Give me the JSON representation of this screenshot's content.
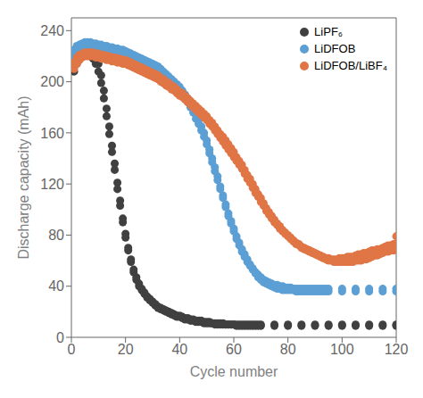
{
  "chart_data": {
    "type": "scatter",
    "xlabel": "Cycle number",
    "ylabel": "Discharge capacity (mAh)",
    "xlim": [
      0,
      120
    ],
    "ylim": [
      0,
      250
    ],
    "xticks": [
      0,
      20,
      40,
      60,
      80,
      100,
      120
    ],
    "yticks": [
      0,
      40,
      80,
      120,
      160,
      200,
      240
    ],
    "grid": false,
    "legend": "upper right",
    "series": [
      {
        "name": "LiPF₆",
        "color": "#404040",
        "x": [
          1,
          2,
          3,
          4,
          5,
          6,
          7,
          8,
          9,
          10,
          11,
          12,
          13,
          14,
          15,
          16,
          17,
          18,
          19,
          20,
          21,
          22,
          23,
          24,
          25,
          26,
          27,
          28,
          29,
          30,
          31,
          32,
          33,
          34,
          35,
          36,
          37,
          38,
          39,
          40,
          41,
          42,
          43,
          44,
          45,
          46,
          47,
          48,
          49,
          50,
          51,
          52,
          53,
          54,
          55,
          56,
          57,
          58,
          59,
          60,
          61,
          62,
          63,
          64,
          65,
          66,
          67,
          68,
          69,
          70,
          75,
          80,
          85,
          90,
          95,
          100,
          105,
          110,
          115,
          120
        ],
        "values": [
          220,
          224,
          226,
          227,
          228,
          227,
          226,
          224,
          220,
          214,
          205,
          193,
          179,
          165,
          150,
          136,
          121,
          107,
          93,
          81,
          70,
          61,
          53,
          47,
          42,
          38,
          35,
          32,
          30,
          28,
          26,
          24,
          23,
          22,
          21,
          20,
          19,
          18,
          17,
          17,
          16,
          15,
          15,
          14,
          14,
          13,
          13,
          13,
          12,
          12,
          12,
          11,
          11,
          11,
          11,
          11,
          10,
          10,
          10,
          10,
          10,
          10,
          10,
          10,
          10,
          10,
          10,
          10,
          10,
          10,
          10,
          10,
          10,
          10,
          10,
          10,
          10,
          10,
          10,
          10
        ]
      },
      {
        "name": "LiPF₆",
        "color": "#404040",
        "x": [
          1,
          2,
          3,
          4,
          5,
          6,
          7,
          8,
          9,
          10,
          11,
          12,
          13,
          14,
          15,
          16,
          17,
          18,
          19,
          20,
          21,
          22,
          23,
          24,
          25,
          26,
          27,
          28,
          29,
          30,
          31,
          32,
          33,
          34,
          35,
          36,
          37,
          38,
          39,
          40,
          41,
          42,
          43,
          44,
          45,
          46,
          47,
          48,
          49,
          50,
          51,
          52,
          53,
          54,
          55,
          56,
          57,
          58,
          59,
          60,
          61,
          62,
          63,
          64,
          65,
          66,
          67,
          68,
          69,
          70,
          75,
          80,
          85,
          90,
          95,
          100,
          105,
          110,
          115,
          120
        ],
        "values": [
          208,
          214,
          218,
          220,
          221,
          221,
          220,
          218,
          214,
          208,
          199,
          187,
          173,
          159,
          145,
          131,
          116,
          103,
          90,
          78,
          68,
          59,
          51,
          45,
          40,
          37,
          34,
          31,
          29,
          27,
          25,
          23,
          22,
          21,
          20,
          19,
          18,
          17,
          16,
          16,
          15,
          14,
          14,
          13,
          13,
          12,
          12,
          12,
          11,
          11,
          11,
          11,
          10,
          10,
          10,
          10,
          10,
          10,
          10,
          10,
          9,
          9,
          9,
          9,
          9,
          9,
          9,
          9,
          9,
          9,
          9,
          9,
          9,
          9,
          9,
          9,
          9,
          9,
          9,
          9
        ]
      },
      {
        "name": "LiDFOB",
        "color": "#5b9fd4",
        "x": [
          1,
          2,
          3,
          4,
          5,
          6,
          7,
          8,
          9,
          10,
          11,
          12,
          13,
          14,
          15,
          16,
          17,
          18,
          19,
          20,
          21,
          22,
          23,
          24,
          25,
          26,
          27,
          28,
          29,
          30,
          31,
          32,
          33,
          34,
          35,
          36,
          37,
          38,
          39,
          40,
          41,
          42,
          43,
          44,
          45,
          46,
          47,
          48,
          49,
          50,
          51,
          52,
          53,
          54,
          55,
          56,
          57,
          58,
          59,
          60,
          61,
          62,
          63,
          64,
          65,
          66,
          67,
          68,
          69,
          70,
          71,
          72,
          73,
          74,
          75,
          76,
          77,
          78,
          79,
          80,
          81,
          82,
          83,
          84,
          85,
          86,
          87,
          88,
          89,
          90,
          91,
          92,
          93,
          94,
          95,
          100,
          105,
          110,
          115,
          120
        ],
        "values": [
          225,
          228,
          229,
          230,
          231,
          231,
          231,
          230,
          230,
          229,
          229,
          228,
          228,
          227,
          227,
          226,
          226,
          225,
          225,
          224,
          223,
          222,
          221,
          220,
          219,
          218,
          217,
          216,
          215,
          214,
          213,
          212,
          210,
          208,
          206,
          204,
          202,
          200,
          198,
          196,
          193,
          190,
          187,
          183,
          179,
          174,
          170,
          165,
          160,
          154,
          147,
          140,
          133,
          126,
          118,
          111,
          104,
          97,
          91,
          85,
          79,
          74,
          69,
          65,
          61,
          57,
          54,
          51,
          49,
          47,
          45,
          44,
          43,
          42,
          41,
          41,
          40,
          40,
          39,
          39,
          39,
          38,
          38,
          38,
          38,
          38,
          38,
          38,
          38,
          38,
          38,
          38,
          38,
          38,
          38,
          38,
          38,
          38,
          38,
          38
        ]
      },
      {
        "name": "LiDFOB",
        "color": "#5b9fd4",
        "x": [
          1,
          2,
          3,
          4,
          5,
          6,
          7,
          8,
          9,
          10,
          11,
          12,
          13,
          14,
          15,
          16,
          17,
          18,
          19,
          20,
          21,
          22,
          23,
          24,
          25,
          26,
          27,
          28,
          29,
          30,
          31,
          32,
          33,
          34,
          35,
          36,
          37,
          38,
          39,
          40,
          41,
          42,
          43,
          44,
          45,
          46,
          47,
          48,
          49,
          50,
          51,
          52,
          53,
          54,
          55,
          56,
          57,
          58,
          59,
          60,
          61,
          62,
          63,
          64,
          65,
          66,
          67,
          68,
          69,
          70,
          71,
          72,
          73,
          74,
          75,
          76,
          77,
          78,
          79,
          80,
          81,
          82,
          83,
          84,
          85,
          86,
          87,
          88,
          89,
          90,
          91,
          92,
          93,
          94,
          95,
          100,
          105,
          110,
          115,
          120
        ],
        "values": [
          220,
          224,
          226,
          227,
          228,
          228,
          228,
          227,
          227,
          226,
          226,
          225,
          225,
          224,
          224,
          223,
          223,
          222,
          222,
          221,
          220,
          219,
          218,
          217,
          216,
          215,
          214,
          213,
          212,
          211,
          210,
          209,
          207,
          205,
          203,
          201,
          199,
          197,
          195,
          193,
          190,
          187,
          184,
          180,
          176,
          171,
          167,
          162,
          157,
          151,
          144,
          137,
          130,
          123,
          116,
          109,
          102,
          95,
          89,
          83,
          77,
          72,
          67,
          63,
          59,
          56,
          53,
          50,
          47,
          45,
          43,
          42,
          41,
          40,
          39,
          38,
          38,
          37,
          37,
          37,
          37,
          37,
          36,
          36,
          36,
          36,
          36,
          36,
          36,
          36,
          36,
          36,
          36,
          36,
          36,
          36,
          36,
          36,
          36,
          36
        ]
      },
      {
        "name": "LiDFOB/LiBF₄",
        "color": "#e07545",
        "x": [
          1,
          2,
          3,
          4,
          5,
          6,
          7,
          8,
          9,
          10,
          11,
          12,
          13,
          14,
          15,
          16,
          17,
          18,
          19,
          20,
          21,
          22,
          23,
          24,
          25,
          26,
          27,
          28,
          29,
          30,
          31,
          32,
          33,
          34,
          35,
          36,
          37,
          38,
          39,
          40,
          41,
          42,
          43,
          44,
          45,
          46,
          47,
          48,
          49,
          50,
          51,
          52,
          53,
          54,
          55,
          56,
          57,
          58,
          59,
          60,
          61,
          62,
          63,
          64,
          65,
          66,
          67,
          68,
          69,
          70,
          71,
          72,
          73,
          74,
          75,
          76,
          77,
          78,
          79,
          80,
          81,
          82,
          83,
          84,
          85,
          86,
          87,
          88,
          89,
          90,
          91,
          92,
          93,
          94,
          95,
          96,
          97,
          98,
          99,
          100,
          101,
          102,
          103,
          104,
          105,
          106,
          107,
          108,
          109,
          110,
          111,
          112,
          113,
          114,
          115,
          116,
          117,
          118,
          119,
          120
        ],
        "values": [
          215,
          219,
          221,
          222,
          223,
          223,
          223,
          223,
          222,
          222,
          221,
          221,
          220,
          220,
          219,
          219,
          218,
          218,
          217,
          217,
          216,
          215,
          214,
          213,
          212,
          211,
          210,
          209,
          208,
          207,
          206,
          205,
          203,
          202,
          200,
          199,
          197,
          196,
          194,
          192,
          191,
          189,
          187,
          185,
          183,
          181,
          179,
          177,
          175,
          173,
          170,
          168,
          165,
          162,
          159,
          157,
          154,
          151,
          148,
          145,
          141,
          138,
          135,
          131,
          127,
          124,
          120,
          116,
          112,
          109,
          105,
          101,
          98,
          95,
          92,
          89,
          87,
          84,
          82,
          80,
          78,
          76,
          74,
          73,
          71,
          70,
          69,
          68,
          67,
          66,
          65,
          64,
          63,
          62,
          62,
          61,
          61,
          61,
          62,
          62,
          62,
          63,
          63,
          63,
          64,
          65,
          65,
          66,
          66,
          67,
          68,
          68,
          69,
          69,
          70,
          71,
          72,
          72,
          73,
          73
        ]
      },
      {
        "name": "LiDFOB/LiBF₄",
        "color": "#e07545",
        "x": [
          1,
          2,
          3,
          4,
          5,
          6,
          7,
          8,
          9,
          10,
          11,
          12,
          13,
          14,
          15,
          16,
          17,
          18,
          19,
          20,
          21,
          22,
          23,
          24,
          25,
          26,
          27,
          28,
          29,
          30,
          31,
          32,
          33,
          34,
          35,
          36,
          37,
          38,
          39,
          40,
          41,
          42,
          43,
          44,
          45,
          46,
          47,
          48,
          49,
          50,
          51,
          52,
          53,
          54,
          55,
          56,
          57,
          58,
          59,
          60,
          61,
          62,
          63,
          64,
          65,
          66,
          67,
          68,
          69,
          70,
          71,
          72,
          73,
          74,
          75,
          76,
          77,
          78,
          79,
          80,
          81,
          82,
          83,
          84,
          85,
          86,
          87,
          88,
          89,
          90,
          91,
          92,
          93,
          94,
          95,
          96,
          97,
          98,
          99,
          100,
          101,
          102,
          103,
          104,
          105,
          106,
          107,
          108,
          109,
          110,
          111,
          112,
          113,
          114,
          115,
          116,
          117,
          118,
          119,
          120
        ],
        "values": [
          210,
          214,
          217,
          219,
          220,
          220,
          220,
          220,
          219,
          219,
          218,
          218,
          217,
          217,
          216,
          216,
          215,
          215,
          214,
          214,
          213,
          212,
          211,
          210,
          209,
          208,
          207,
          206,
          205,
          204,
          203,
          202,
          200,
          199,
          197,
          196,
          194,
          193,
          191,
          189,
          188,
          186,
          184,
          182,
          180,
          178,
          176,
          174,
          172,
          170,
          167,
          165,
          162,
          159,
          156,
          153,
          150,
          147,
          144,
          141,
          138,
          135,
          132,
          128,
          124,
          121,
          117,
          113,
          110,
          106,
          103,
          99,
          96,
          93,
          90,
          88,
          85,
          83,
          81,
          79,
          77,
          75,
          73,
          72,
          70,
          69,
          68,
          67,
          66,
          65,
          64,
          63,
          62,
          61,
          60,
          60,
          59,
          59,
          59,
          59,
          59,
          59,
          59,
          59,
          60,
          60,
          60,
          61,
          61,
          62,
          63,
          64,
          64,
          65,
          66,
          67,
          67,
          68,
          68,
          79
        ]
      }
    ]
  }
}
